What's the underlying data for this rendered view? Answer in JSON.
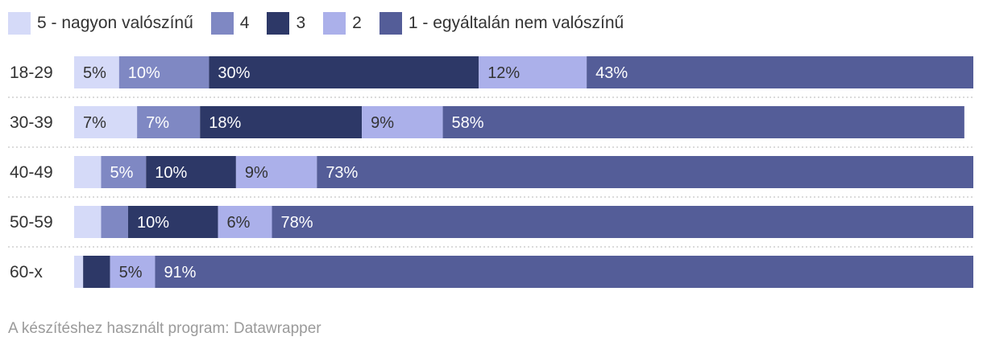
{
  "chart_data": {
    "type": "bar",
    "stacked": true,
    "orientation": "horizontal",
    "percent_scale": true,
    "categories": [
      "18-29",
      "30-39",
      "40-49",
      "50-59",
      "60-x"
    ],
    "series": [
      {
        "name": "5 - nagyon valószínű",
        "color": "#d5daf8",
        "values": [
          5,
          7,
          3,
          3,
          1
        ],
        "labels": [
          "5%",
          "7%",
          "",
          "",
          ""
        ],
        "label_color": "#333333"
      },
      {
        "name": "4",
        "color": "#7f88c3",
        "values": [
          10,
          7,
          5,
          3,
          0
        ],
        "labels": [
          "10%",
          "7%",
          "5%",
          "",
          ""
        ],
        "label_color": "#ffffff"
      },
      {
        "name": "3",
        "color": "#2d3867",
        "values": [
          30,
          18,
          10,
          10,
          3
        ],
        "labels": [
          "30%",
          "18%",
          "10%",
          "10%",
          ""
        ],
        "label_color": "#ffffff"
      },
      {
        "name": "2",
        "color": "#abb0ea",
        "values": [
          12,
          9,
          9,
          6,
          5
        ],
        "labels": [
          "12%",
          "9%",
          "9%",
          "6%",
          "5%"
        ],
        "label_color": "#333333"
      },
      {
        "name": "1 - egyáltalán nem valószínű",
        "color": "#545d98",
        "values": [
          43,
          58,
          73,
          78,
          91
        ],
        "labels": [
          "43%",
          "58%",
          "73%",
          "78%",
          "91%"
        ],
        "label_color": "#ffffff"
      }
    ],
    "legend_position": "top-left",
    "grid": false
  },
  "footer": "A készítéshez használt program: Datawrapper"
}
